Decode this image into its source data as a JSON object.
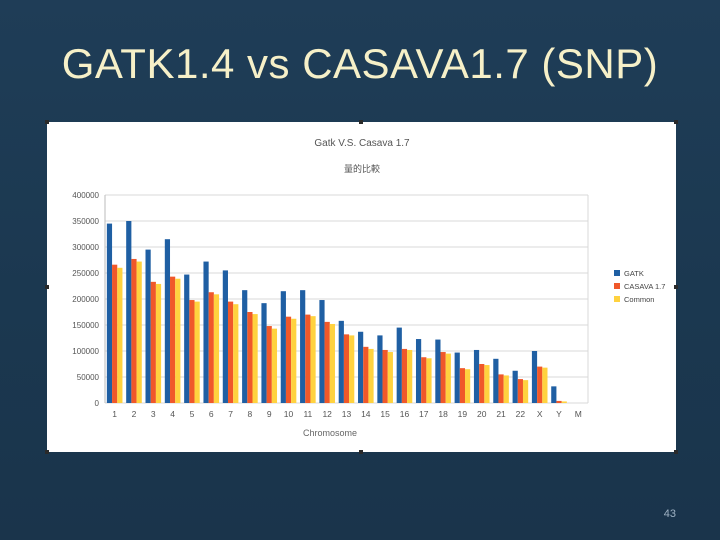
{
  "slide": {
    "title": "GATK1.4 vs CASAVA1.7 (SNP)",
    "page_number": "43"
  },
  "colors": {
    "gatk": "#1f5fa3",
    "casava": "#f0582a",
    "common": "#ffd23f",
    "grid": "#d9d9d9"
  },
  "chart_data": {
    "type": "bar",
    "title": "Gatk V.S. Casava 1.7",
    "subtitle": "量的比較",
    "xlabel": "Chromosome",
    "ylabel": "",
    "ylim": [
      0,
      400000
    ],
    "yticks": [
      0,
      50000,
      100000,
      150000,
      200000,
      250000,
      300000,
      350000,
      400000
    ],
    "grid": true,
    "legend_position": "right",
    "categories": [
      "1",
      "2",
      "3",
      "4",
      "5",
      "6",
      "7",
      "8",
      "9",
      "10",
      "11",
      "12",
      "13",
      "14",
      "15",
      "16",
      "17",
      "18",
      "19",
      "20",
      "21",
      "22",
      "X",
      "Y",
      "M"
    ],
    "series": [
      {
        "name": "GATK",
        "values": [
          345000,
          350000,
          295000,
          315000,
          247000,
          272000,
          255000,
          217000,
          192000,
          215000,
          217000,
          198000,
          158000,
          137000,
          130000,
          145000,
          123000,
          122000,
          97000,
          102000,
          85000,
          62000,
          100000,
          32000,
          0
        ]
      },
      {
        "name": "CASAVA 1.7",
        "values": [
          266000,
          277000,
          233000,
          243000,
          198000,
          213000,
          195000,
          175000,
          148000,
          166000,
          170000,
          156000,
          132000,
          108000,
          102000,
          104000,
          88000,
          98000,
          67000,
          75000,
          55000,
          46000,
          70000,
          4000,
          0
        ]
      },
      {
        "name": "Common",
        "values": [
          260000,
          272000,
          229000,
          239000,
          195000,
          209000,
          190000,
          171000,
          143000,
          162000,
          167000,
          152000,
          130000,
          104000,
          98000,
          102000,
          86000,
          95000,
          65000,
          73000,
          53000,
          44000,
          68000,
          3000,
          0
        ]
      }
    ]
  }
}
